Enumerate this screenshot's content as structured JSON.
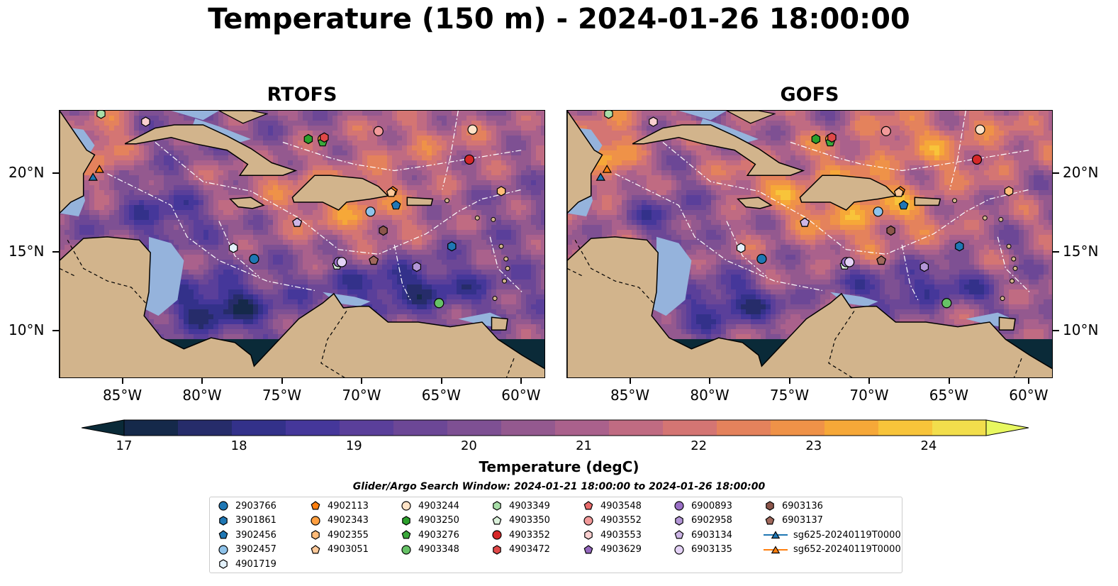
{
  "title": "Temperature (150 m) - 2024-01-26 18:00:00",
  "panels": [
    {
      "title": "RTOFS",
      "variant": "rtofs"
    },
    {
      "title": "GOFS",
      "variant": "gofs"
    }
  ],
  "axes": {
    "lon_labels": [
      "85°W",
      "80°W",
      "75°W",
      "70°W",
      "65°W",
      "60°W"
    ],
    "lon_values": [
      -85,
      -80,
      -75,
      -70,
      -65,
      -60
    ],
    "lat_labels": [
      "20°N",
      "15°N",
      "10°N"
    ],
    "lat_values": [
      20,
      15,
      10
    ],
    "lon_range": [
      -89,
      -58.5
    ],
    "lat_range": [
      7,
      24
    ]
  },
  "colorbar": {
    "label": "Temperature (degC)",
    "ticks": [
      "17",
      "18",
      "19",
      "20",
      "21",
      "22",
      "23",
      "24"
    ],
    "tick_values": [
      17,
      18,
      19,
      20,
      21,
      22,
      23,
      24
    ],
    "range": [
      17,
      24.5
    ],
    "step": 0.5,
    "extend": "both",
    "colors": [
      "#0a2a38",
      "#15294a",
      "#262c6a",
      "#33318a",
      "#45379a",
      "#5a3f9a",
      "#6c4796",
      "#7e5093",
      "#94598f",
      "#aa618c",
      "#c06b82",
      "#d47573",
      "#e4825c",
      "#ef9248",
      "#f6a838",
      "#f8c43a",
      "#f2de4c",
      "#e8f860"
    ]
  },
  "search_window": "Glider/Argo Search Window: 2024-01-21 18:00:00 to 2024-01-26 18:00:00",
  "legend": [
    {
      "label": "2903766",
      "marker": "circle",
      "color": "#1f77b4"
    },
    {
      "label": "3901861",
      "marker": "hexagon",
      "color": "#1f77b4"
    },
    {
      "label": "3902456",
      "marker": "pentagon",
      "color": "#1f77b4"
    },
    {
      "label": "3902457",
      "marker": "circle",
      "color": "#8fc3ea"
    },
    {
      "label": "4901719",
      "marker": "hexagon",
      "color": "#e3f1fb"
    },
    {
      "label": "4902113",
      "marker": "pentagon",
      "color": "#ff7f0e"
    },
    {
      "label": "4902343",
      "marker": "circle",
      "color": "#ff9f40"
    },
    {
      "label": "4902355",
      "marker": "hexagon",
      "color": "#ffbb78"
    },
    {
      "label": "4903051",
      "marker": "pentagon",
      "color": "#ffc999"
    },
    {
      "label": "4903244",
      "marker": "circle",
      "color": "#ffe3c7"
    },
    {
      "label": "4903250",
      "marker": "hexagon",
      "color": "#2ca02c"
    },
    {
      "label": "4903276",
      "marker": "pentagon",
      "color": "#3aa83a"
    },
    {
      "label": "4903348",
      "marker": "circle",
      "color": "#66c266"
    },
    {
      "label": "4903349",
      "marker": "hexagon",
      "color": "#a8dea8"
    },
    {
      "label": "4903350",
      "marker": "pentagon",
      "color": "#dcf2dc"
    },
    {
      "label": "4903352",
      "marker": "circle",
      "color": "#d62728"
    },
    {
      "label": "4903472",
      "marker": "hexagon",
      "color": "#e04848"
    },
    {
      "label": "4903548",
      "marker": "pentagon",
      "color": "#e86a6a"
    },
    {
      "label": "4903552",
      "marker": "circle",
      "color": "#f29a9a"
    },
    {
      "label": "4903553",
      "marker": "hexagon",
      "color": "#fad0d0"
    },
    {
      "label": "4903629",
      "marker": "pentagon",
      "color": "#9467bd"
    },
    {
      "label": "6900893",
      "marker": "circle",
      "color": "#9a6fc6"
    },
    {
      "label": "6902958",
      "marker": "hexagon",
      "color": "#b396d6"
    },
    {
      "label": "6903134",
      "marker": "pentagon",
      "color": "#cdb6e6"
    },
    {
      "label": "6903135",
      "marker": "circle",
      "color": "#e4d2f6"
    },
    {
      "label": "6903136",
      "marker": "hexagon",
      "color": "#8c564b"
    },
    {
      "label": "6903137",
      "marker": "pentagon",
      "color": "#a0685c"
    },
    {
      "label": "sg625-20240119T0000",
      "marker": "triangle",
      "color": "#1f77b4",
      "line": true
    },
    {
      "label": "sg652-20240119T0000",
      "marker": "triangle",
      "color": "#ff7f0e",
      "line": true
    }
  ],
  "floats": [
    {
      "id": "2903766",
      "lon": -76.8,
      "lat": 14.6
    },
    {
      "id": "3901861",
      "lon": -64.4,
      "lat": 15.4
    },
    {
      "id": "3902456",
      "lon": -67.9,
      "lat": 18.0
    },
    {
      "id": "3902457",
      "lon": -69.5,
      "lat": 17.6
    },
    {
      "id": "4901719",
      "lon": -78.1,
      "lat": 15.3
    },
    {
      "id": "4902113",
      "lon": -68.1,
      "lat": 18.9
    },
    {
      "id": "4902343",
      "lon": -72.5,
      "lat": 22.2
    },
    {
      "id": "4902355",
      "lon": -61.3,
      "lat": 18.9
    },
    {
      "id": "4903051",
      "lon": -68.2,
      "lat": 18.8
    },
    {
      "id": "4903244",
      "lon": -63.1,
      "lat": 22.8
    },
    {
      "id": "4903250",
      "lon": -73.4,
      "lat": 22.2
    },
    {
      "id": "4903276",
      "lon": -72.5,
      "lat": 22.0
    },
    {
      "id": "4903348",
      "lon": -65.2,
      "lat": 11.8
    },
    {
      "id": "4903349",
      "lon": -86.4,
      "lat": 23.8
    },
    {
      "id": "4903350",
      "lon": -71.6,
      "lat": 14.2
    },
    {
      "id": "4903352",
      "lon": -63.3,
      "lat": 20.9
    },
    {
      "id": "4903472",
      "lon": -72.4,
      "lat": 22.3
    },
    {
      "id": "4903548",
      "lon": -69.3,
      "lat": 14.5
    },
    {
      "id": "4903552",
      "lon": -69.0,
      "lat": 22.7
    },
    {
      "id": "4903553",
      "lon": -83.6,
      "lat": 23.3
    },
    {
      "id": "4903629",
      "lon": -74.1,
      "lat": 16.9
    },
    {
      "id": "6900893",
      "lon": -71.5,
      "lat": 14.4
    },
    {
      "id": "6902958",
      "lon": -66.6,
      "lat": 14.1
    },
    {
      "id": "6903134",
      "lon": -74.1,
      "lat": 16.9
    },
    {
      "id": "6903135",
      "lon": -71.3,
      "lat": 14.4
    },
    {
      "id": "6903136",
      "lon": -68.7,
      "lat": 16.4
    },
    {
      "id": "6903137",
      "lon": -69.3,
      "lat": 14.5
    },
    {
      "id": "sg625-20240119T0000",
      "lon": -86.9,
      "lat": 19.8
    },
    {
      "id": "sg652-20240119T0000",
      "lon": -86.5,
      "lat": 20.3
    }
  ]
}
